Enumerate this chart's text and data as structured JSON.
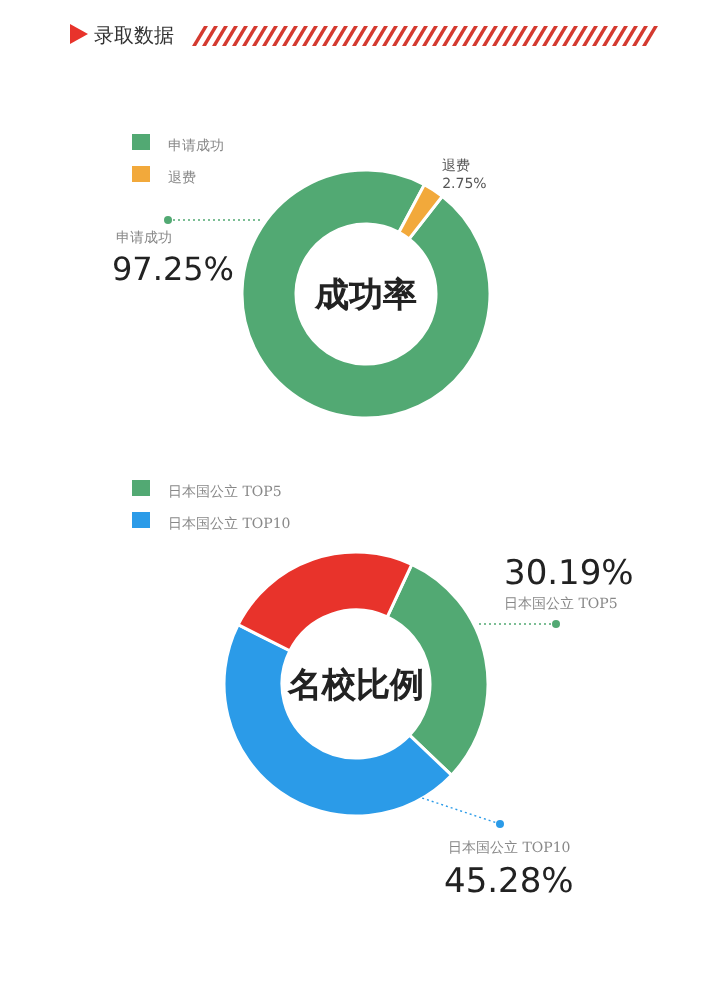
{
  "chart_data": [
    {
      "type": "donut",
      "title": "录取数据",
      "categories": [
        "申请成功",
        "退费"
      ],
      "values": [
        97.25,
        2.75
      ],
      "colors": [
        "#52a973",
        "#f2a93b"
      ],
      "value_labels": [
        "97.25%",
        "2.75%"
      ],
      "legend": "top left",
      "annotations": [
        "成功率"
      ]
    },
    {
      "type": "donut",
      "categories": [
        "日本国公立 TOP5",
        "日本国公立 TOP10",
        null
      ],
      "values": [
        30.19,
        45.28,
        24.53
      ],
      "colors": [
        "#52a973",
        "#2b9be8",
        "#e8332b"
      ],
      "value_labels": [
        "30.19%",
        "45.28%",
        null
      ],
      "legend": "top left",
      "annotations": [
        "名校比例"
      ]
    }
  ]
}
